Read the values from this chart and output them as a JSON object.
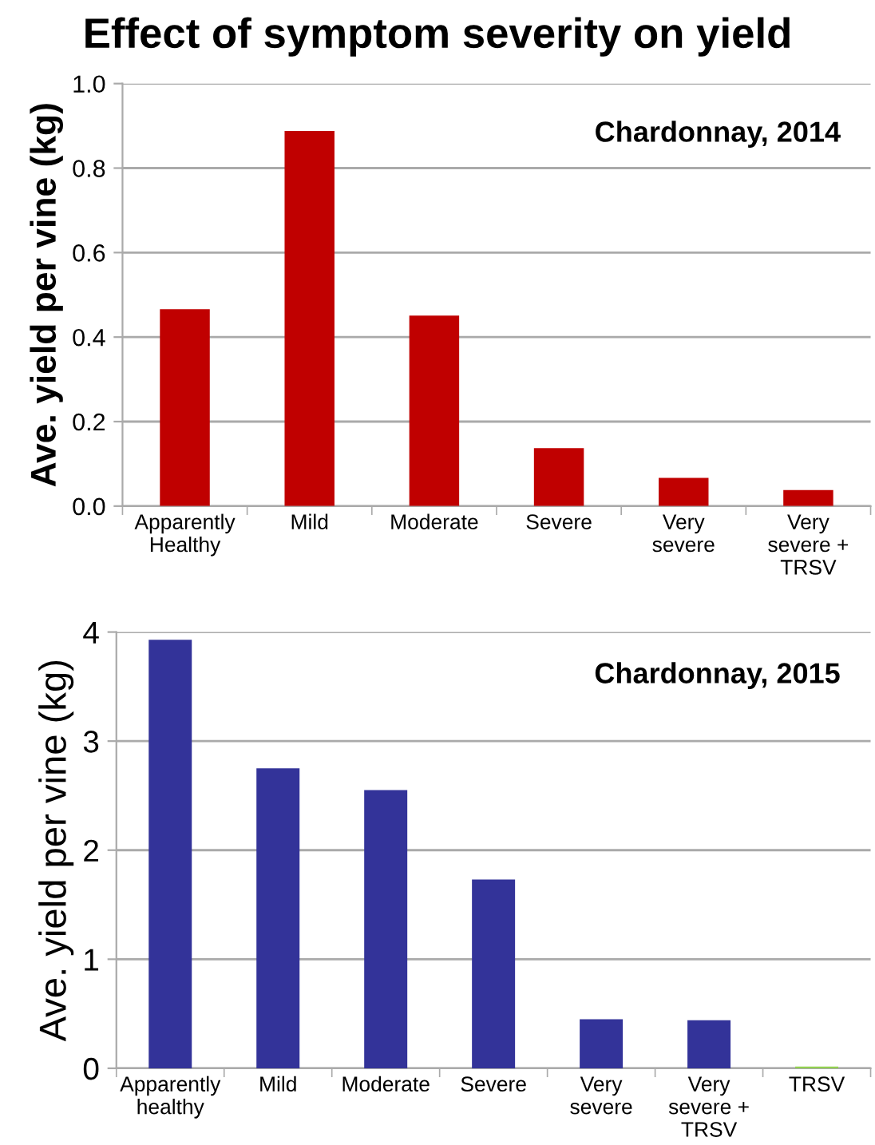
{
  "chart_data": [
    {
      "type": "bar",
      "title": "Effect of symptom severity on yield",
      "ylabel": "Ave. yield per vine (kg)",
      "annotations": [
        "Chardonnay, 2014"
      ],
      "categories": [
        "Apparently\nHealthy",
        "Mild",
        "Moderate",
        "Severe",
        "Very\nsevere",
        "Very\nsevere +\nTRSV"
      ],
      "values": [
        0.466,
        0.888,
        0.451,
        0.137,
        0.067,
        0.038
      ],
      "color": "#c00000",
      "ylim": [
        0,
        1.0
      ],
      "yticks": [
        {
          "value": 0,
          "label": "0.0"
        },
        {
          "value": 0.2,
          "label": "0.2"
        },
        {
          "value": 0.4,
          "label": "0.4"
        },
        {
          "value": 0.6,
          "label": "0.6"
        },
        {
          "value": 0.8,
          "label": "0.8"
        },
        {
          "value": 1.0,
          "label": "1.0"
        }
      ],
      "grid": "y",
      "legend": false
    },
    {
      "type": "bar",
      "ylabel": "Ave. yield per vine (kg)",
      "annotations": [
        "Chardonnay, 2015"
      ],
      "categories": [
        "Apparently\nhealthy",
        "Mild",
        "Moderate",
        "Severe",
        "Very\nsevere",
        "Very\nsevere +\nTRSV",
        "TRSV"
      ],
      "values": [
        3.93,
        2.75,
        2.55,
        1.73,
        0.45,
        0.44,
        0.015
      ],
      "colors": [
        "#333399",
        "#333399",
        "#333399",
        "#333399",
        "#333399",
        "#333399",
        "#92d050"
      ],
      "ylim": [
        0,
        4
      ],
      "yticks": [
        0,
        1,
        2,
        3,
        4
      ],
      "grid": "y",
      "legend": false
    }
  ]
}
